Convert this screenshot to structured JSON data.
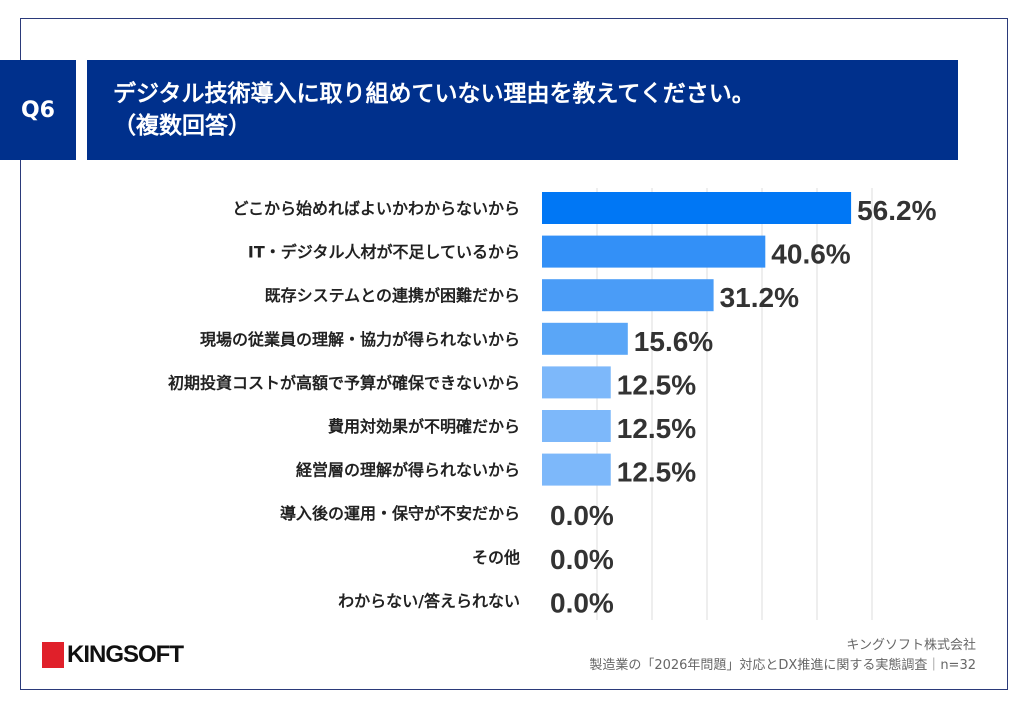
{
  "header": {
    "question_no": "Q6",
    "title_line1": "デジタル技術導入に取り組めていない理由を教えてください。",
    "title_line2": "（複数回答）",
    "color": "#00308c"
  },
  "chart_data": {
    "type": "bar",
    "orientation": "horizontal",
    "categories": [
      "どこから始めればよいかわからないから",
      "IT・デジタル人材が不足しているから",
      "既存システムとの連携が困難だから",
      "現場の従業員の理解・協力が得られないから",
      "初期投資コストが高額で予算が確保できないから",
      "費用対効果が不明確だから",
      "経営層の理解が得られないから",
      "導入後の運用・保守が不安だから",
      "その他",
      "わからない/答えられない"
    ],
    "values": [
      56.2,
      40.6,
      31.2,
      15.6,
      12.5,
      12.5,
      12.5,
      0.0,
      0.0,
      0.0
    ],
    "value_labels": [
      "56.2%",
      "40.6%",
      "31.2%",
      "15.6%",
      "12.5%",
      "12.5%",
      "12.5%",
      "0.0%",
      "0.0%",
      "0.0%"
    ],
    "bar_colors": [
      "#0077f5",
      "#3390f7",
      "#4a9cf7",
      "#5aa6f7",
      "#7db8fa",
      "#7db8fa",
      "#7db8fa",
      "#7db8fa",
      "#7db8fa",
      "#7db8fa"
    ],
    "xlim": [
      0,
      60
    ],
    "grid": true,
    "grid_step": 10
  },
  "footer": {
    "company": "キングソフト株式会社",
    "source": "製造業の「2026年問題」対応とDX推進に関する実態調査｜n=32",
    "logo_text": "KINGSOFT"
  }
}
